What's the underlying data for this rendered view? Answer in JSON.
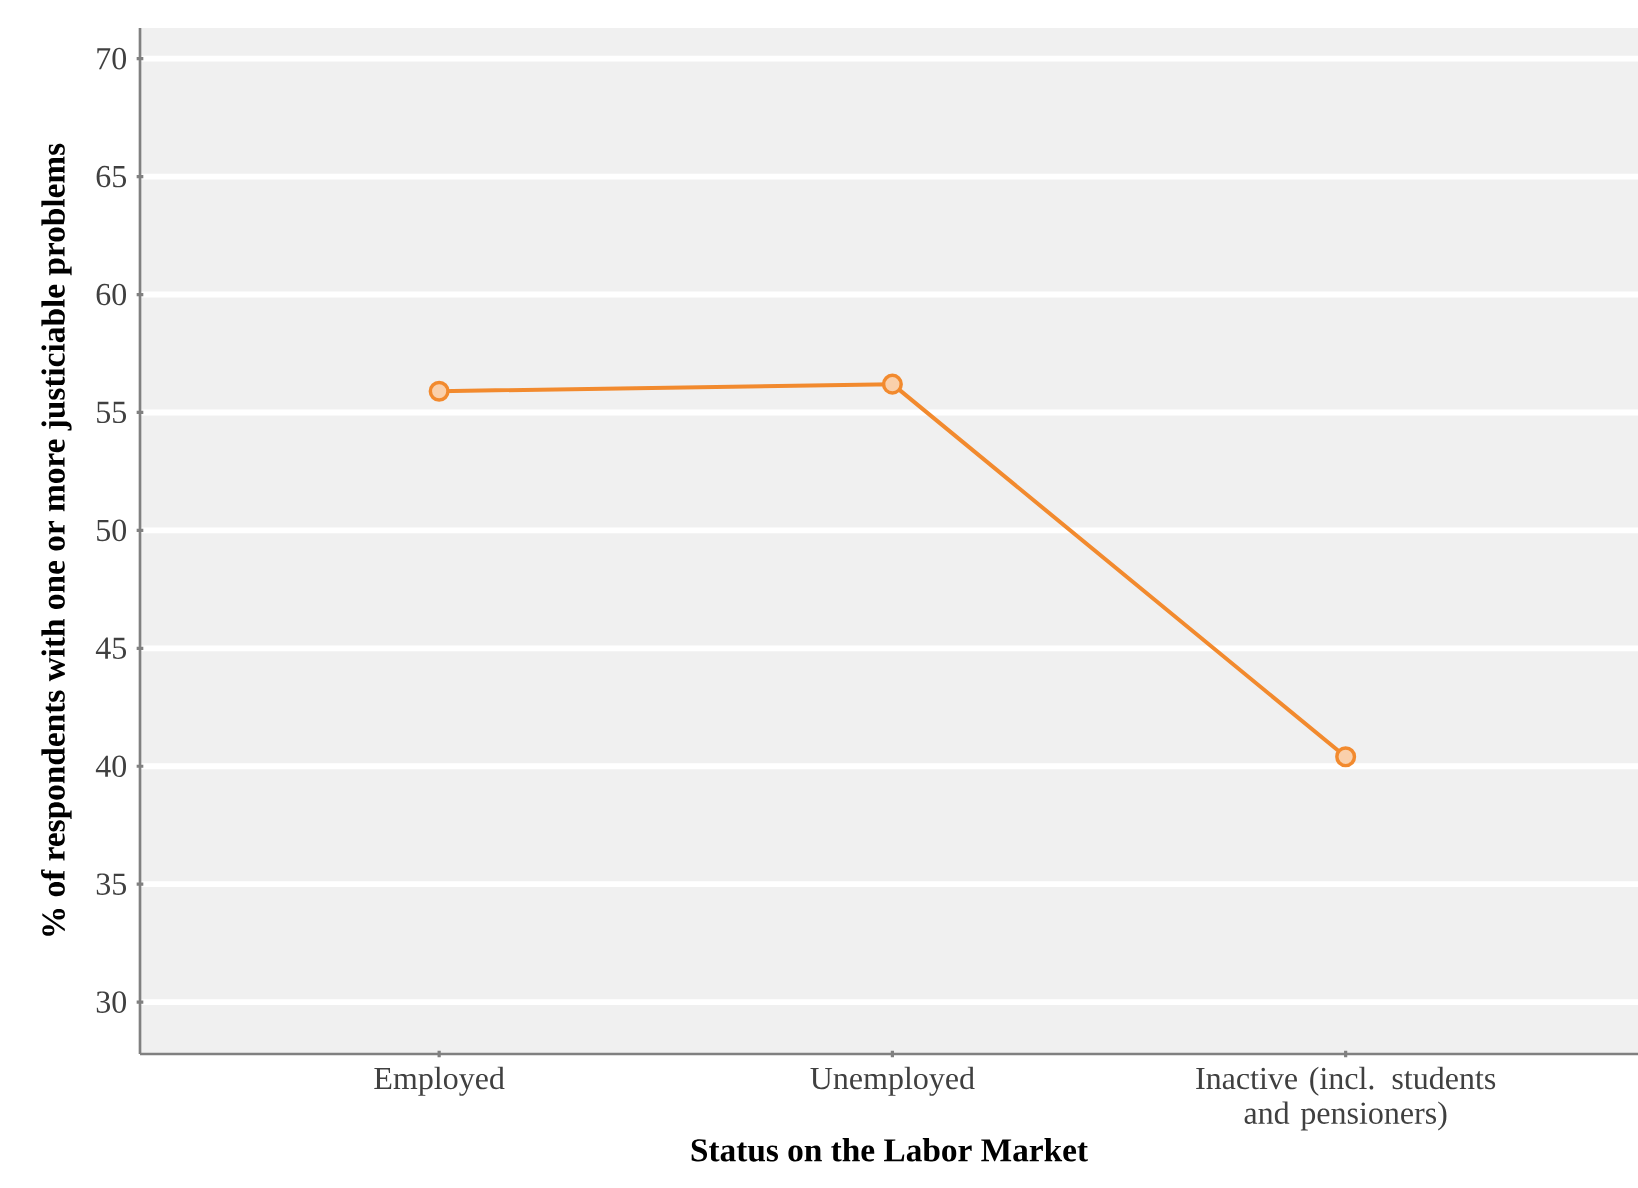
{
  "chart_data": {
    "type": "line",
    "xlabel": "Status on the Labor Market",
    "ylabel": "% of respondents with one or more justiciable problems",
    "categories": [
      "Employed",
      "Unemployed",
      "Inactive (incl. students and pensioners)"
    ],
    "series": [
      {
        "color": "#f28a2e",
        "values": [
          55.9,
          56.2,
          40.4
        ]
      }
    ],
    "ylim": [
      27.8,
      71.3
    ],
    "yticks": [
      30,
      35,
      40,
      45,
      50,
      55,
      60,
      65,
      70
    ],
    "grid": "y",
    "marker": "circle",
    "line_style": "solid"
  }
}
